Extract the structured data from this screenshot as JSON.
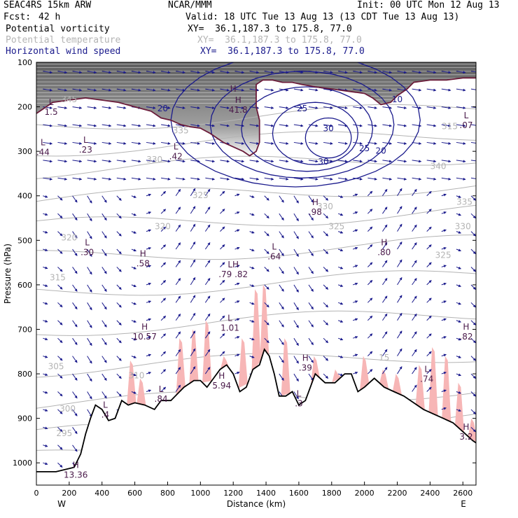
{
  "header": {
    "model": "SEAC4RS 15km ARW",
    "org": "NCAR/MMM",
    "init": "Init: 00 UTC Mon 12 Aug 13",
    "fcst_label": "Fcst:",
    "fcst_value": "42 h",
    "valid": "Valid: 18 UTC Tue 13 Aug 13 (13 CDT Tue 13 Aug 13)",
    "fields": [
      {
        "name": "Potential vorticity",
        "xy": "XY=  36.1,187.3 to 175.8, 77.0",
        "color": "#000000"
      },
      {
        "name": "Potential temperature",
        "xy": "XY=  36.1,187.3 to 175.8, 77.0",
        "color": "#b4b4b4"
      },
      {
        "name": "Horizontal wind speed",
        "xy": "XY=  36.1,187.3 to 175.8, 77.0",
        "color": "#1a1a8c"
      }
    ]
  },
  "chart_data": {
    "type": "cross-section",
    "xlabel": "Distance (km)",
    "ylabel": "Pressure (hPa)",
    "xlim": [
      0,
      2680
    ],
    "ylim": [
      1050,
      100
    ],
    "x_ticks": [
      0,
      200,
      400,
      600,
      800,
      1000,
      1200,
      1400,
      1600,
      1800,
      2000,
      2200,
      2400,
      2600
    ],
    "y_ticks": [
      100,
      200,
      300,
      400,
      500,
      600,
      700,
      800,
      900,
      1000
    ],
    "x_end_labels": {
      "left": "W",
      "right": "E"
    },
    "colors": {
      "pv_shade": "#555555",
      "theta": "#b4b4b4",
      "wind": "#1a1a8c",
      "tropopause": "#6b1c3a",
      "humidity": "#f7b6b6",
      "terrain": "#000000"
    },
    "terrain_surface": [
      [
        0,
        1020
      ],
      [
        120,
        1020
      ],
      [
        230,
        1010
      ],
      [
        270,
        980
      ],
      [
        300,
        935
      ],
      [
        330,
        900
      ],
      [
        360,
        870
      ],
      [
        400,
        880
      ],
      [
        440,
        905
      ],
      [
        480,
        900
      ],
      [
        520,
        860
      ],
      [
        560,
        870
      ],
      [
        600,
        865
      ],
      [
        660,
        870
      ],
      [
        720,
        880
      ],
      [
        760,
        860
      ],
      [
        820,
        860
      ],
      [
        900,
        830
      ],
      [
        960,
        815
      ],
      [
        1000,
        815
      ],
      [
        1040,
        830
      ],
      [
        1080,
        810
      ],
      [
        1120,
        790
      ],
      [
        1160,
        780
      ],
      [
        1200,
        800
      ],
      [
        1240,
        840
      ],
      [
        1280,
        830
      ],
      [
        1320,
        790
      ],
      [
        1360,
        780
      ],
      [
        1390,
        745
      ],
      [
        1420,
        760
      ],
      [
        1450,
        800
      ],
      [
        1480,
        850
      ],
      [
        1520,
        850
      ],
      [
        1560,
        840
      ],
      [
        1600,
        870
      ],
      [
        1640,
        860
      ],
      [
        1700,
        800
      ],
      [
        1760,
        820
      ],
      [
        1820,
        820
      ],
      [
        1880,
        800
      ],
      [
        1920,
        800
      ],
      [
        1960,
        840
      ],
      [
        2000,
        830
      ],
      [
        2060,
        810
      ],
      [
        2120,
        830
      ],
      [
        2180,
        840
      ],
      [
        2240,
        850
      ],
      [
        2300,
        865
      ],
      [
        2360,
        880
      ],
      [
        2420,
        890
      ],
      [
        2480,
        900
      ],
      [
        2540,
        910
      ],
      [
        2600,
        930
      ],
      [
        2660,
        950
      ],
      [
        2680,
        955
      ]
    ],
    "tropopause": [
      [
        0,
        215
      ],
      [
        100,
        190
      ],
      [
        200,
        185
      ],
      [
        300,
        180
      ],
      [
        400,
        185
      ],
      [
        500,
        190
      ],
      [
        600,
        200
      ],
      [
        700,
        210
      ],
      [
        760,
        225
      ],
      [
        820,
        230
      ],
      [
        880,
        240
      ],
      [
        940,
        245
      ],
      [
        1000,
        248
      ],
      [
        1060,
        260
      ],
      [
        1100,
        270
      ],
      [
        1140,
        280
      ],
      [
        1200,
        290
      ],
      [
        1260,
        300
      ],
      [
        1300,
        310
      ],
      [
        1340,
        300
      ],
      [
        1360,
        280
      ],
      [
        1360,
        230
      ],
      [
        1340,
        200
      ],
      [
        1340,
        150
      ],
      [
        1380,
        140
      ],
      [
        1440,
        140
      ],
      [
        1500,
        145
      ],
      [
        1560,
        145
      ],
      [
        1620,
        150
      ],
      [
        1700,
        155
      ],
      [
        1800,
        160
      ],
      [
        1900,
        165
      ],
      [
        2000,
        170
      ],
      [
        2050,
        180
      ],
      [
        2100,
        195
      ],
      [
        2160,
        190
      ],
      [
        2200,
        175
      ],
      [
        2260,
        160
      ],
      [
        2300,
        145
      ],
      [
        2400,
        140
      ],
      [
        2500,
        140
      ],
      [
        2600,
        135
      ],
      [
        2680,
        135
      ]
    ],
    "theta_labels": [
      {
        "text": "345",
        "x": 200,
        "y": 190
      },
      {
        "text": "335",
        "x": 880,
        "y": 260
      },
      {
        "text": "330",
        "x": 720,
        "y": 325
      },
      {
        "text": "325",
        "x": 1000,
        "y": 405
      },
      {
        "text": "320",
        "x": 200,
        "y": 500
      },
      {
        "text": "320",
        "x": 770,
        "y": 475
      },
      {
        "text": "315",
        "x": 130,
        "y": 590
      },
      {
        "text": "305",
        "x": 120,
        "y": 790
      },
      {
        "text": "300",
        "x": 190,
        "y": 885
      },
      {
        "text": "295",
        "x": 170,
        "y": 940
      },
      {
        "text": "310",
        "x": 610,
        "y": 810
      },
      {
        "text": "330",
        "x": 1760,
        "y": 430
      },
      {
        "text": "325",
        "x": 1830,
        "y": 475
      },
      {
        "text": "325",
        "x": 2480,
        "y": 540
      },
      {
        "text": "330",
        "x": 2600,
        "y": 475
      },
      {
        "text": "335",
        "x": 2610,
        "y": 420
      },
      {
        "text": "340",
        "x": 2450,
        "y": 340
      },
      {
        "text": "315",
        "x": 2520,
        "y": 250
      },
      {
        "text": "15",
        "x": 2120,
        "y": 770
      }
    ],
    "wind_speed_labels": [
      {
        "text": "20",
        "x": 770,
        "y": 210
      },
      {
        "text": "25",
        "x": 1620,
        "y": 210
      },
      {
        "text": "30",
        "x": 1780,
        "y": 255
      },
      {
        "text": "20",
        "x": 2100,
        "y": 305
      },
      {
        "text": "25",
        "x": 2000,
        "y": 300
      },
      {
        "text": "30",
        "x": 1750,
        "y": 330
      },
      {
        "text": "10",
        "x": 2200,
        "y": 190
      }
    ],
    "pv_extrema": [
      {
        "kind": "H",
        "value": "",
        "x": 1200,
        "y": 185
      },
      {
        "kind": "L",
        "value": "1.5",
        "x": 90,
        "y": 215
      },
      {
        "kind": "H",
        "value": "41.8",
        "x": 1230,
        "y": 210
      },
      {
        "kind": "L",
        "value": ".44",
        "x": 40,
        "y": 305
      },
      {
        "kind": "L",
        "value": ".23",
        "x": 300,
        "y": 300
      },
      {
        "kind": "L",
        "value": ".42",
        "x": 850,
        "y": 315
      },
      {
        "kind": "L",
        "value": ".07",
        "x": 2620,
        "y": 245
      },
      {
        "kind": "L",
        "value": ".30",
        "x": 310,
        "y": 530
      },
      {
        "kind": "H",
        "value": ".58",
        "x": 650,
        "y": 555
      },
      {
        "kind": "L",
        "value": ".64",
        "x": 1450,
        "y": 540
      },
      {
        "kind": "H",
        "value": ".98",
        "x": 1700,
        "y": 440
      },
      {
        "kind": "H",
        "value": ".80",
        "x": 2120,
        "y": 530
      },
      {
        "kind": "LH",
        "value": ".79 .82",
        "x": 1200,
        "y": 580
      },
      {
        "kind": "L",
        "value": "1.01",
        "x": 1180,
        "y": 700
      },
      {
        "kind": "H",
        "value": "10.57",
        "x": 660,
        "y": 720
      },
      {
        "kind": "H",
        "value": ".82",
        "x": 2620,
        "y": 720
      },
      {
        "kind": "H",
        "value": ".39",
        "x": 1640,
        "y": 790
      },
      {
        "kind": "L",
        "value": ".74",
        "x": 2380,
        "y": 815
      },
      {
        "kind": "H",
        "value": "5.94",
        "x": 1130,
        "y": 830
      },
      {
        "kind": "L",
        "value": ".84",
        "x": 760,
        "y": 860
      },
      {
        "kind": "L",
        "value": ".4",
        "x": 420,
        "y": 895
      },
      {
        "kind": "L",
        "value": ".3",
        "x": 1600,
        "y": 870
      },
      {
        "kind": "H",
        "value": "3.2",
        "x": 2620,
        "y": 945
      },
      {
        "kind": "H",
        "value": "13.36",
        "x": 240,
        "y": 1030
      }
    ]
  }
}
